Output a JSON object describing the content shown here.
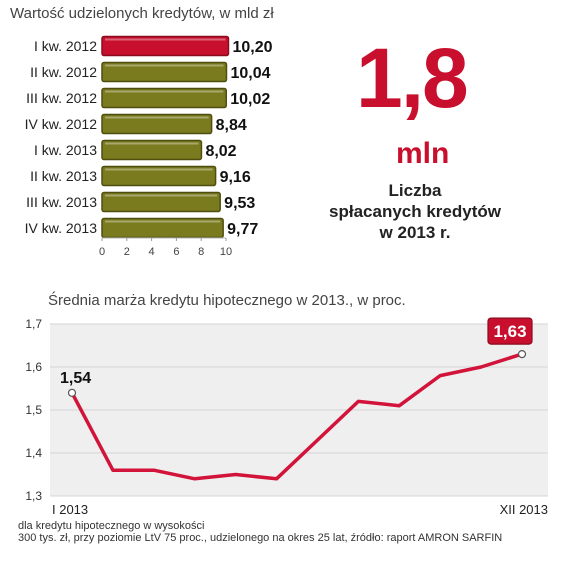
{
  "bar_section": {
    "title": "Wartość udzielonych kredytów, w mld zł"
  },
  "stat": {
    "big_number": "1,8",
    "unit": "mln",
    "caption_lines": [
      "Liczba",
      "spłacanych kredytów",
      "w 2013 r."
    ]
  },
  "line_section": {
    "title": "Średnia marża kredytu hipotecznego w 2013., w proc."
  },
  "footnote": {
    "lines": [
      "dla kredytu hipotecznego w wysokości",
      "300 tys. zł, przy poziomie LtV 75 proc., udzielonego na okres 25 lat, źródło: raport AMRON SARFIN"
    ]
  },
  "colors": {
    "highlight": "#c8102e",
    "bar": "#7a7a1e",
    "line": "#d2143a",
    "plot_bg": "#efefef"
  },
  "chart_data": [
    {
      "type": "bar",
      "orientation": "horizontal",
      "categories": [
        "I kw. 2012",
        "II kw. 2012",
        "III kw. 2012",
        "IV kw. 2012",
        "I kw. 2013",
        "II kw. 2013",
        "III kw. 2013",
        "IV kw. 2013"
      ],
      "values": [
        10.2,
        10.04,
        10.02,
        8.84,
        8.02,
        9.16,
        9.53,
        9.77
      ],
      "value_labels": [
        "10,20",
        "10,04",
        "10,02",
        "8,84",
        "8,02",
        "9,16",
        "9,53",
        "9,77"
      ],
      "highlight_index": 0,
      "xlim": [
        0,
        10
      ],
      "xticks": [
        0,
        2,
        4,
        6,
        8,
        10
      ]
    },
    {
      "type": "line",
      "x_start_label": "I 2013",
      "x_end_label": "XII 2013",
      "values": [
        1.54,
        1.36,
        1.36,
        1.34,
        1.35,
        1.34,
        1.43,
        1.52,
        1.51,
        1.58,
        1.6,
        1.63
      ],
      "ylim": [
        1.3,
        1.7
      ],
      "yticks": [
        "1,3",
        "1,4",
        "1,5",
        "1,6",
        "1,7"
      ],
      "annotations": [
        {
          "index": 0,
          "label": "1,54"
        },
        {
          "index": 11,
          "label": "1,63"
        }
      ],
      "grid": true
    }
  ]
}
